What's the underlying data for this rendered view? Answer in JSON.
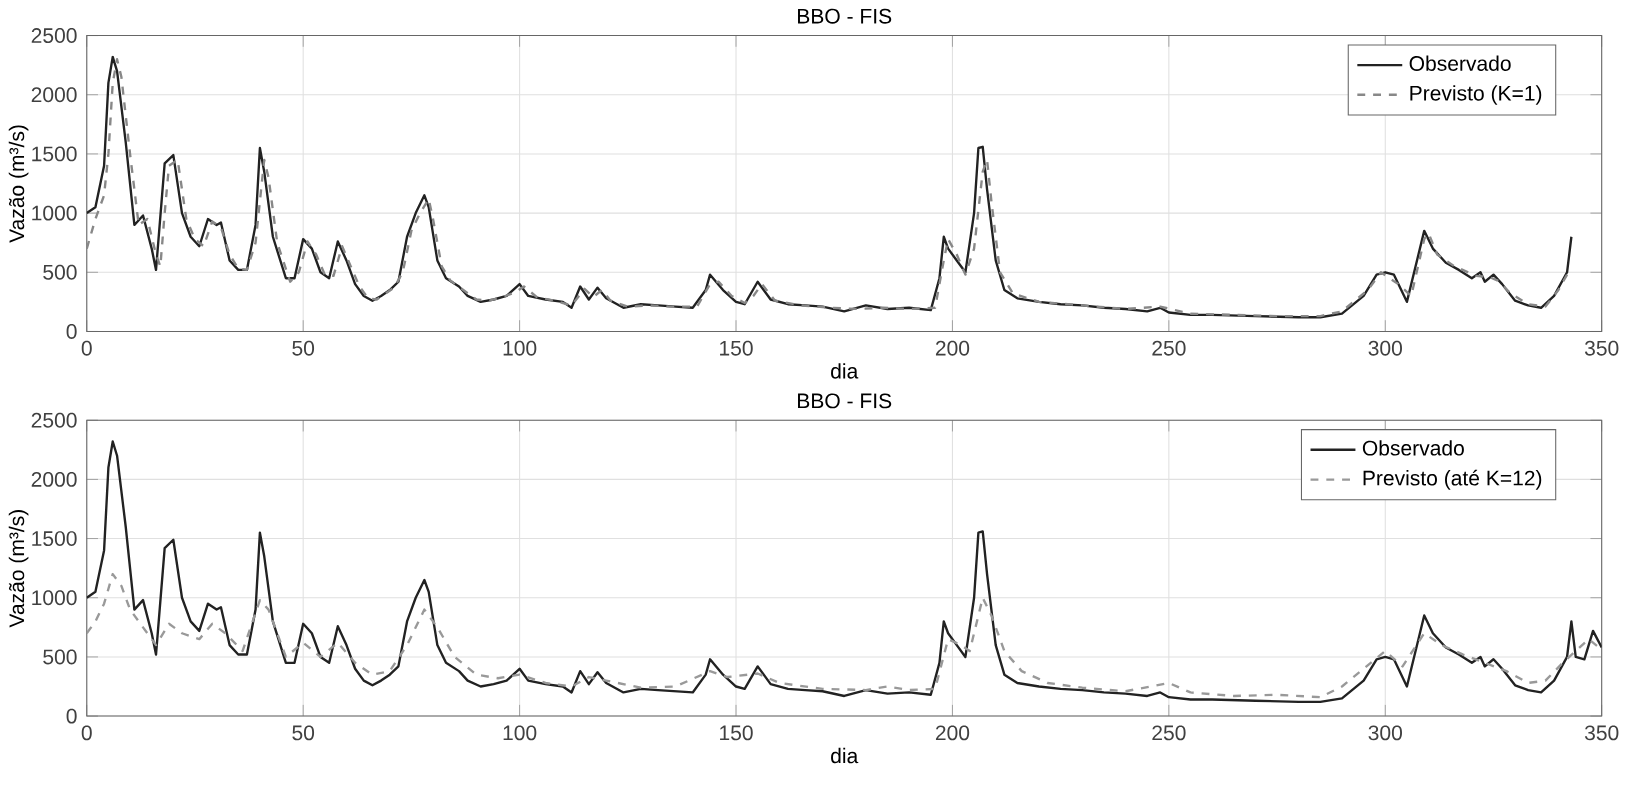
{
  "chart_data": [
    {
      "type": "line",
      "title": "BBO - FIS",
      "xlabel": "dia",
      "ylabel": "Vazão (m³/s)",
      "xlim": [
        0,
        350
      ],
      "ylim": [
        0,
        2500
      ],
      "xticks": [
        0,
        50,
        100,
        150,
        200,
        250,
        300,
        350
      ],
      "yticks": [
        0,
        500,
        1000,
        1500,
        2000,
        2500
      ],
      "grid": true,
      "legend": "top right",
      "series": [
        {
          "name": "Observado",
          "color": "#222222",
          "line_style": "solid",
          "x": [
            0,
            2,
            4,
            5,
            6,
            7,
            9,
            11,
            13,
            15,
            16,
            18,
            20,
            22,
            24,
            26,
            28,
            30,
            31,
            33,
            35,
            37,
            39,
            40,
            41,
            43,
            46,
            48,
            50,
            52,
            54,
            56,
            58,
            60,
            62,
            64,
            66,
            68,
            70,
            72,
            74,
            76,
            78,
            79,
            81,
            83,
            86,
            88,
            91,
            94,
            97,
            100,
            102,
            106,
            110,
            112,
            114,
            116,
            118,
            120,
            124,
            128,
            132,
            136,
            140,
            143,
            144,
            147,
            150,
            152,
            155,
            158,
            162,
            166,
            170,
            175,
            180,
            185,
            190,
            195,
            197,
            198,
            199,
            201,
            203,
            205,
            206,
            207,
            208,
            210,
            212,
            215,
            220,
            225,
            230,
            235,
            240,
            245,
            248,
            250,
            255,
            260,
            270,
            280,
            285,
            290,
            295,
            298,
            300,
            302,
            305,
            308,
            309,
            311,
            314,
            317,
            320,
            322,
            323,
            325,
            327,
            330,
            333,
            336,
            339,
            342,
            343
          ],
          "values": [
            1000,
            1050,
            1400,
            2100,
            2320,
            2200,
            1600,
            900,
            980,
            700,
            520,
            1420,
            1490,
            1000,
            800,
            720,
            950,
            900,
            920,
            600,
            520,
            520,
            900,
            1550,
            1350,
            800,
            450,
            450,
            780,
            700,
            500,
            450,
            760,
            600,
            400,
            300,
            260,
            300,
            350,
            420,
            800,
            1000,
            1150,
            1050,
            600,
            450,
            380,
            300,
            250,
            270,
            300,
            400,
            300,
            270,
            250,
            200,
            380,
            270,
            370,
            280,
            200,
            230,
            220,
            210,
            200,
            350,
            480,
            350,
            250,
            230,
            420,
            270,
            230,
            220,
            210,
            170,
            220,
            190,
            200,
            180,
            450,
            800,
            700,
            600,
            500,
            1000,
            1550,
            1560,
            1200,
            600,
            350,
            280,
            250,
            230,
            220,
            200,
            190,
            170,
            200,
            160,
            140,
            140,
            130,
            120,
            120,
            150,
            300,
            480,
            500,
            480,
            250,
            700,
            850,
            700,
            580,
            520,
            450,
            500,
            420,
            480,
            400,
            260,
            220,
            200,
            300,
            500,
            800
          ]
        },
        {
          "name": "Previsto (K=1)",
          "color": "#888888",
          "line_style": "dashed",
          "x": [
            0,
            2,
            4,
            5,
            6,
            7,
            8,
            10,
            12,
            14,
            16,
            17,
            18,
            19,
            21,
            23,
            25,
            27,
            29,
            31,
            33,
            35,
            37,
            39,
            41,
            42,
            44,
            47,
            49,
            51,
            53,
            55,
            57,
            59,
            61,
            63,
            65,
            67,
            69,
            71,
            73,
            75,
            77,
            79,
            80,
            82,
            84,
            87,
            90,
            93,
            96,
            99,
            101,
            104,
            108,
            112,
            115,
            117,
            119,
            121,
            125,
            130,
            135,
            141,
            144,
            146,
            149,
            152,
            154,
            156,
            159,
            165,
            172,
            178,
            184,
            190,
            196,
            198,
            199,
            201,
            203,
            205,
            207,
            208,
            209,
            211,
            214,
            220,
            230,
            240,
            248,
            255,
            265,
            275,
            285,
            290,
            296,
            299,
            301,
            303,
            306,
            309,
            310,
            312,
            316,
            321,
            324,
            326,
            329,
            333,
            337,
            340,
            342
          ],
          "values": [
            700,
            950,
            1150,
            1500,
            2100,
            2300,
            2150,
            1500,
            900,
            950,
            650,
            550,
            1000,
            1400,
            1450,
            950,
            780,
            720,
            930,
            880,
            650,
            530,
            520,
            750,
            1450,
            1300,
            750,
            420,
            500,
            760,
            650,
            480,
            470,
            720,
            550,
            380,
            280,
            270,
            320,
            370,
            500,
            850,
            1000,
            1120,
            950,
            550,
            430,
            350,
            270,
            260,
            290,
            330,
            380,
            290,
            260,
            220,
            360,
            290,
            350,
            260,
            210,
            220,
            210,
            210,
            400,
            420,
            300,
            240,
            300,
            400,
            260,
            220,
            200,
            190,
            200,
            190,
            200,
            600,
            780,
            650,
            480,
            700,
            1350,
            1450,
            1100,
            500,
            320,
            250,
            220,
            190,
            210,
            150,
            140,
            130,
            130,
            170,
            350,
            500,
            450,
            400,
            300,
            780,
            830,
            650,
            550,
            470,
            460,
            430,
            320,
            230,
            210,
            350,
            480
          ]
        }
      ]
    },
    {
      "type": "line",
      "title": "BBO - FIS",
      "xlabel": "dia",
      "ylabel": "Vazão (m³/s)",
      "xlim": [
        0,
        350
      ],
      "ylim": [
        0,
        2500
      ],
      "xticks": [
        0,
        50,
        100,
        150,
        200,
        250,
        300,
        350
      ],
      "yticks": [
        0,
        500,
        1000,
        1500,
        2000,
        2500
      ],
      "grid": true,
      "legend": "top right",
      "series": [
        {
          "name": "Observado",
          "color": "#222222",
          "line_style": "solid",
          "x": [
            0,
            2,
            4,
            5,
            6,
            7,
            9,
            11,
            13,
            15,
            16,
            18,
            20,
            22,
            24,
            26,
            28,
            30,
            31,
            33,
            35,
            37,
            39,
            40,
            41,
            43,
            46,
            48,
            50,
            52,
            54,
            56,
            58,
            60,
            62,
            64,
            66,
            68,
            70,
            72,
            74,
            76,
            78,
            79,
            81,
            83,
            86,
            88,
            91,
            94,
            97,
            100,
            102,
            106,
            110,
            112,
            114,
            116,
            118,
            120,
            124,
            128,
            132,
            136,
            140,
            143,
            144,
            147,
            150,
            152,
            155,
            158,
            162,
            166,
            170,
            175,
            180,
            185,
            190,
            195,
            197,
            198,
            199,
            201,
            203,
            205,
            206,
            207,
            208,
            210,
            212,
            215,
            220,
            225,
            230,
            235,
            240,
            245,
            248,
            250,
            255,
            260,
            270,
            280,
            285,
            290,
            295,
            298,
            300,
            302,
            305,
            308,
            309,
            311,
            314,
            317,
            320,
            322,
            323,
            325,
            327,
            330,
            333,
            336,
            339,
            342,
            343,
            344,
            346,
            348,
            350
          ],
          "values": [
            1000,
            1050,
            1400,
            2100,
            2320,
            2200,
            1600,
            900,
            980,
            700,
            520,
            1420,
            1490,
            1000,
            800,
            720,
            950,
            900,
            920,
            600,
            520,
            520,
            900,
            1550,
            1350,
            800,
            450,
            450,
            780,
            700,
            500,
            450,
            760,
            600,
            400,
            300,
            260,
            300,
            350,
            420,
            800,
            1000,
            1150,
            1050,
            600,
            450,
            380,
            300,
            250,
            270,
            300,
            400,
            300,
            270,
            250,
            200,
            380,
            270,
            370,
            280,
            200,
            230,
            220,
            210,
            200,
            350,
            480,
            350,
            250,
            230,
            420,
            270,
            230,
            220,
            210,
            170,
            220,
            190,
            200,
            180,
            450,
            800,
            700,
            600,
            500,
            1000,
            1550,
            1560,
            1200,
            600,
            350,
            280,
            250,
            230,
            220,
            200,
            190,
            170,
            200,
            160,
            140,
            140,
            130,
            120,
            120,
            150,
            300,
            480,
            500,
            480,
            250,
            700,
            850,
            700,
            580,
            520,
            450,
            500,
            420,
            480,
            400,
            260,
            220,
            200,
            300,
            500,
            800,
            500,
            480,
            720,
            580
          ]
        },
        {
          "name": "Previsto (até K=12)",
          "color": "#999999",
          "line_style": "dashed",
          "x": [
            0,
            2,
            4,
            6,
            8,
            10,
            13,
            16,
            19,
            22,
            26,
            29,
            32,
            36,
            40,
            42,
            46,
            50,
            54,
            58,
            62,
            66,
            70,
            74,
            78,
            81,
            85,
            90,
            95,
            100,
            106,
            112,
            116,
            120,
            128,
            136,
            144,
            148,
            155,
            160,
            170,
            180,
            185,
            190,
            196,
            199,
            202,
            204,
            207,
            209,
            212,
            216,
            222,
            230,
            240,
            250,
            255,
            265,
            275,
            285,
            290,
            295,
            300,
            304,
            309,
            313,
            318,
            323,
            328,
            333,
            337,
            341,
            344,
            347,
            350
          ],
          "values": [
            700,
            800,
            950,
            1200,
            1100,
            900,
            750,
            600,
            780,
            700,
            650,
            780,
            700,
            550,
            980,
            900,
            500,
            620,
            500,
            620,
            450,
            350,
            380,
            600,
            900,
            750,
            500,
            350,
            320,
            350,
            280,
            250,
            330,
            300,
            240,
            250,
            380,
            330,
            360,
            280,
            230,
            220,
            250,
            220,
            230,
            650,
            600,
            550,
            1000,
            850,
            550,
            380,
            280,
            240,
            210,
            280,
            200,
            170,
            180,
            160,
            250,
            400,
            550,
            420,
            700,
            600,
            520,
            450,
            380,
            280,
            300,
            450,
            550,
            650,
            560
          ]
        }
      ]
    }
  ]
}
